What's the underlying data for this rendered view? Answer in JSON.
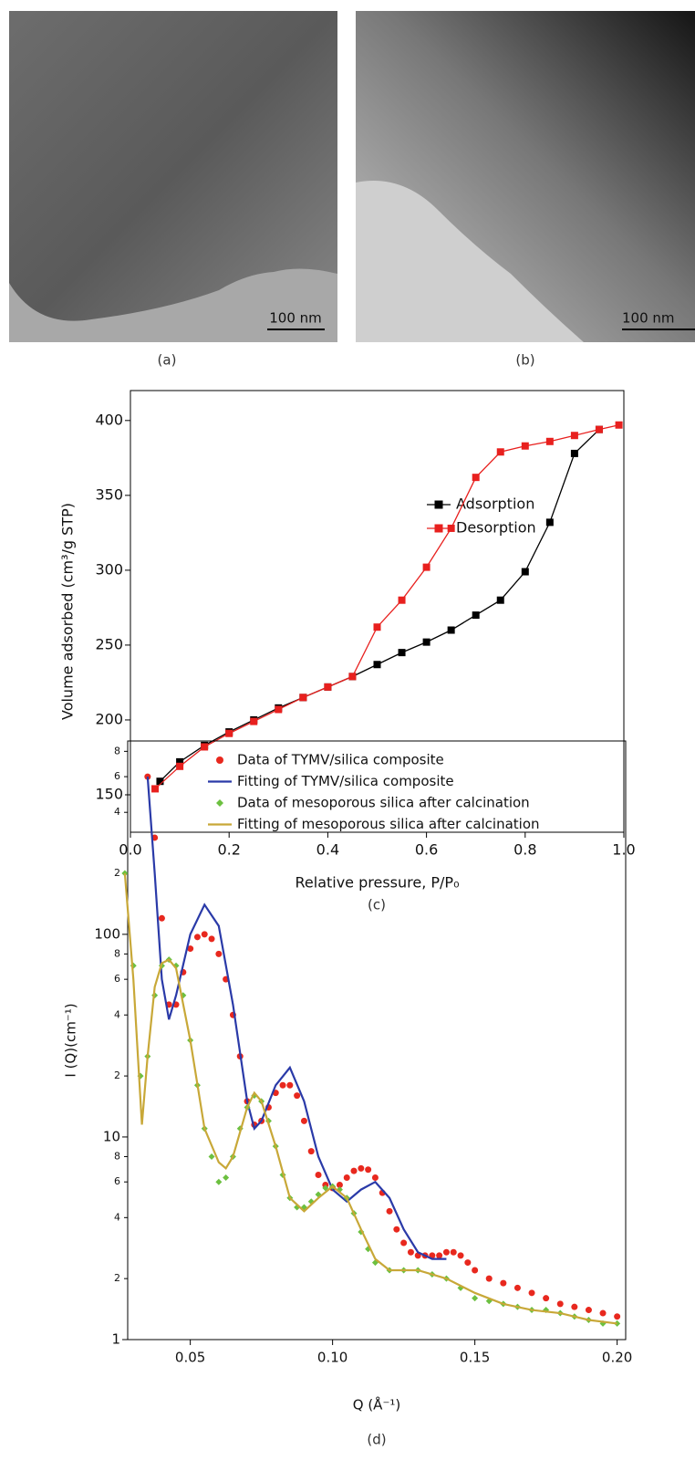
{
  "panel_labels": [
    "(a)",
    "(b)",
    "(c)",
    "(d)"
  ],
  "scale_bars": [
    "100 nm",
    "100 nm"
  ],
  "chart_data": [
    {
      "type": "line",
      "xlabel": "Relative pressure, P/P₀",
      "ylabel": "Volume adsorbed (cm³/g STP)",
      "xlim": [
        0,
        1
      ],
      "ylim": [
        125,
        420
      ],
      "xticks": [
        {
          "value": 0,
          "label": "0.0"
        },
        0.2,
        0.4,
        0.6,
        0.8,
        {
          "value": 1,
          "label": "1.0"
        }
      ],
      "yticks": [
        150,
        200,
        250,
        300,
        350,
        400
      ],
      "legend": "center right",
      "series": [
        {
          "name": "Adsorption",
          "color": "#000000",
          "style": "line",
          "marker": "square",
          "x": [
            0.06,
            0.1,
            0.15,
            0.2,
            0.25,
            0.3,
            0.35,
            0.4,
            0.45,
            0.5,
            0.55,
            0.6,
            0.65,
            0.7,
            0.75,
            0.8,
            0.85,
            0.9,
            0.95
          ],
          "values": [
            159,
            172,
            183,
            192,
            200,
            208,
            215,
            222,
            229,
            237,
            245,
            252,
            260,
            270,
            280,
            299,
            332,
            378,
            394
          ]
        },
        {
          "name": "Desorption",
          "color": "#e8201e",
          "style": "line",
          "marker": "square",
          "x": [
            0.05,
            0.1,
            0.15,
            0.2,
            0.25,
            0.3,
            0.35,
            0.4,
            0.45,
            0.5,
            0.55,
            0.6,
            0.65,
            0.7,
            0.75,
            0.8,
            0.85,
            0.9,
            0.95,
            0.99
          ],
          "values": [
            154,
            169,
            182,
            191,
            199,
            207,
            215,
            222,
            229,
            262,
            280,
            302,
            328,
            362,
            379,
            383,
            386,
            390,
            394,
            397
          ]
        }
      ]
    },
    {
      "type": "line",
      "xlabel": "Q (Å⁻¹)",
      "ylabel": "I (Q)(cm⁻¹)",
      "log_y": true,
      "xlim": [
        0.028,
        0.203
      ],
      "ylim": [
        1,
        900
      ],
      "xticks": [
        0.05,
        {
          "value": 0.1,
          "label": "0.10"
        },
        0.15,
        {
          "value": 0.2,
          "label": "0.20"
        }
      ],
      "yticks": [
        1,
        2,
        4,
        6,
        8,
        10,
        {
          "value": 20,
          "label": "2"
        },
        {
          "value": 40,
          "label": "4"
        },
        {
          "value": 60,
          "label": "6"
        },
        {
          "value": 80,
          "label": "8"
        },
        100,
        {
          "value": 200,
          "label": "2"
        },
        {
          "value": 400,
          "label": "4"
        },
        {
          "value": 600,
          "label": "6"
        },
        {
          "value": 800,
          "label": "8"
        }
      ],
      "legend": "top right",
      "series": [
        {
          "name": "Data of TYMV/silica composite",
          "color": "#e8281e",
          "style": "scatter",
          "marker": "circle",
          "x": [
            0.035,
            0.0375,
            0.04,
            0.0425,
            0.045,
            0.0475,
            0.05,
            0.0525,
            0.055,
            0.0575,
            0.06,
            0.0625,
            0.065,
            0.0675,
            0.07,
            0.0725,
            0.075,
            0.0775,
            0.08,
            0.0825,
            0.085,
            0.0875,
            0.09,
            0.0925,
            0.095,
            0.0975,
            0.1,
            0.1025,
            0.105,
            0.1075,
            0.11,
            0.1125,
            0.115,
            0.1175,
            0.12,
            0.1225,
            0.125,
            0.1275,
            0.13,
            0.1325,
            0.135,
            0.1375,
            0.14,
            0.1425,
            0.145,
            0.1475,
            0.15,
            0.155,
            0.16,
            0.165,
            0.17,
            0.175,
            0.18,
            0.185,
            0.19,
            0.195,
            0.2
          ],
          "values": [
            600,
            300,
            120,
            45,
            45,
            65,
            85,
            97,
            100,
            95,
            80,
            60,
            40,
            25,
            15,
            11.5,
            12,
            14,
            16.5,
            18,
            18,
            16,
            12,
            8.5,
            6.5,
            5.8,
            5.6,
            5.8,
            6.3,
            6.8,
            7,
            6.9,
            6.3,
            5.3,
            4.3,
            3.5,
            3,
            2.7,
            2.6,
            2.6,
            2.6,
            2.6,
            2.7,
            2.7,
            2.6,
            2.4,
            2.2,
            2.0,
            1.9,
            1.8,
            1.7,
            1.6,
            1.5,
            1.45,
            1.4,
            1.35,
            1.3
          ]
        },
        {
          "name": "Fitting of TYMV/silica composite",
          "color": "#2a3aa8",
          "style": "line",
          "x": [
            0.035,
            0.0375,
            0.04,
            0.0425,
            0.045,
            0.05,
            0.055,
            0.06,
            0.065,
            0.07,
            0.0725,
            0.075,
            0.08,
            0.085,
            0.09,
            0.095,
            0.1,
            0.105,
            0.11,
            0.115,
            0.12,
            0.125,
            0.13,
            0.135,
            0.14
          ],
          "values": [
            600,
            200,
            60,
            38,
            50,
            100,
            140,
            110,
            45,
            15,
            11,
            12,
            18,
            22,
            15,
            8,
            5.5,
            4.8,
            5.5,
            6,
            5,
            3.5,
            2.7,
            2.5,
            2.5
          ]
        },
        {
          "name": "Data of mesoporous silica after calcination",
          "color": "#6cc040",
          "style": "scatter",
          "marker": "diamond",
          "x": [
            0.027,
            0.03,
            0.0325,
            0.035,
            0.0375,
            0.04,
            0.0425,
            0.045,
            0.0475,
            0.05,
            0.0525,
            0.055,
            0.0575,
            0.06,
            0.0625,
            0.065,
            0.0675,
            0.07,
            0.0725,
            0.075,
            0.0775,
            0.08,
            0.0825,
            0.085,
            0.0875,
            0.09,
            0.0925,
            0.095,
            0.0975,
            0.1,
            0.1025,
            0.105,
            0.1075,
            0.11,
            0.1125,
            0.115,
            0.12,
            0.125,
            0.13,
            0.135,
            0.14,
            0.145,
            0.15,
            0.155,
            0.16,
            0.165,
            0.17,
            0.175,
            0.18,
            0.185,
            0.19,
            0.195,
            0.2
          ],
          "values": [
            200,
            70,
            20,
            25,
            50,
            70,
            75,
            70,
            50,
            30,
            18,
            11,
            8,
            6,
            6.3,
            8,
            11,
            14,
            16,
            15,
            12,
            9,
            6.5,
            5,
            4.5,
            4.5,
            4.8,
            5.2,
            5.6,
            5.7,
            5.5,
            5,
            4.2,
            3.4,
            2.8,
            2.4,
            2.2,
            2.2,
            2.2,
            2.1,
            2.0,
            1.8,
            1.6,
            1.55,
            1.5,
            1.45,
            1.4,
            1.4,
            1.35,
            1.3,
            1.25,
            1.2,
            1.2
          ]
        },
        {
          "name": "Fitting of mesoporous silica after calcination",
          "color": "#c8a838",
          "style": "line",
          "x": [
            0.027,
            0.03,
            0.033,
            0.035,
            0.0375,
            0.04,
            0.0425,
            0.045,
            0.05,
            0.055,
            0.06,
            0.0625,
            0.065,
            0.07,
            0.0725,
            0.075,
            0.08,
            0.085,
            0.09,
            0.095,
            0.1,
            0.105,
            0.11,
            0.115,
            0.12,
            0.13,
            0.14,
            0.15,
            0.16,
            0.17,
            0.18,
            0.19,
            0.2
          ],
          "values": [
            200,
            60,
            11.5,
            25,
            55,
            72,
            75,
            68,
            30,
            11,
            7.5,
            7,
            8,
            14,
            16.5,
            15,
            9,
            5,
            4.3,
            5,
            5.7,
            5,
            3.5,
            2.5,
            2.2,
            2.2,
            2.0,
            1.7,
            1.5,
            1.4,
            1.35,
            1.25,
            1.2
          ]
        }
      ]
    }
  ]
}
